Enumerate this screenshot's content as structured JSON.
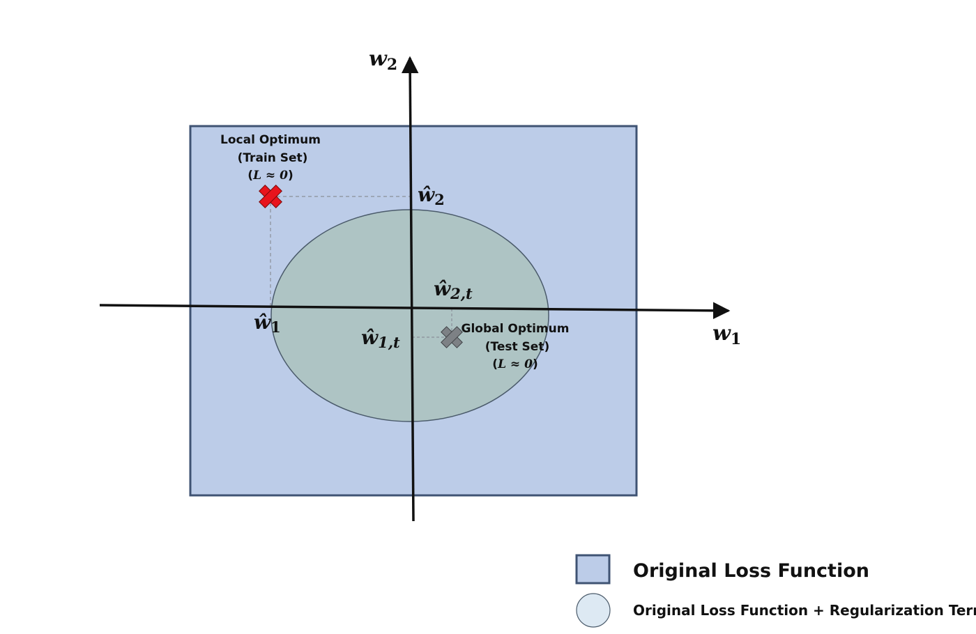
{
  "colors": {
    "square_fill": "#bccce8",
    "square_stroke": "#3f5373",
    "ellipse_fill": "#aec4c4",
    "ellipse_stroke": "#4a5a6a",
    "axis": "#111111",
    "guide": "#8a8f99",
    "local_marker": "#e8141c",
    "global_marker": "#7d8185",
    "legend_circle_fill": "#dde9f3"
  },
  "axes": {
    "x_var": "w",
    "x_sub": "1",
    "y_var": "w",
    "y_sub": "2"
  },
  "local_optimum": {
    "line1": "Local Optimum",
    "line2": "(Train Set)",
    "line3_open": "(",
    "line3_math": "L ≈ 0",
    "line3_close": ")",
    "icon": "x-mark-icon"
  },
  "global_optimum": {
    "line1": "Global Optimum",
    "line2": "(Test Set)",
    "line3_open": "(",
    "line3_math": "L ≈ 0",
    "line3_close": ")",
    "icon": "x-mark-icon"
  },
  "estimates": {
    "w1_hat": {
      "symbol": "ŵ",
      "sub": "1"
    },
    "w2_hat": {
      "symbol": "ŵ",
      "sub": "2"
    },
    "w1t_hat": {
      "symbol": "ŵ",
      "sub": "1,t"
    },
    "w2t_hat": {
      "symbol": "ŵ",
      "sub": "2,t"
    }
  },
  "legend": {
    "items": [
      {
        "label": "Original Loss Function",
        "icon": "square-swatch-icon"
      },
      {
        "label": "Original Loss Function + Regularization Term",
        "icon": "circle-swatch-icon"
      }
    ]
  }
}
